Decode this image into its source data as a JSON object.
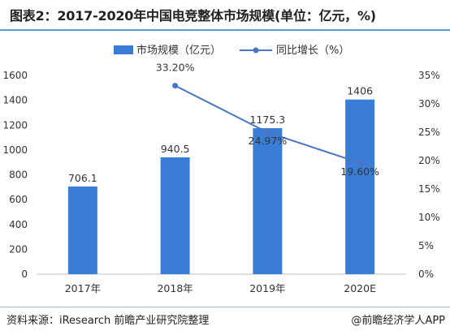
{
  "title": "图表2：2017-2020年中国电竞整体市场规模(单位：亿元，%)",
  "footer": {
    "source": "资料来源：iResearch 前瞻产业研究院整理",
    "credit": "@前瞻经济学人APP"
  },
  "colors": {
    "bar": "#3a7dd6",
    "line": "#4a74c4",
    "point": "#4a74c4"
  },
  "chart_data": {
    "type": "bar",
    "categories": [
      "2017年",
      "2018年",
      "2019年",
      "2020E"
    ],
    "series": [
      {
        "name": "市场规模（亿元）",
        "type": "bar",
        "axis": "left",
        "values": [
          706.1,
          940.5,
          1175.3,
          1406
        ],
        "labels": [
          "706.1",
          "940.5",
          "1175.3",
          "1406"
        ]
      },
      {
        "name": "同比增长（%）",
        "type": "line",
        "axis": "right",
        "values": [
          null,
          33.2,
          24.97,
          19.6
        ],
        "labels": [
          "",
          "33.20%",
          "24.97%",
          "19.60%"
        ]
      }
    ],
    "y_left": {
      "min": 0,
      "max": 1600,
      "ticks": [
        "0",
        "200",
        "400",
        "600",
        "800",
        "1000",
        "1200",
        "1400",
        "1600"
      ]
    },
    "y_right": {
      "min": 0,
      "max": 35,
      "ticks": [
        "0%",
        "5%",
        "10%",
        "15%",
        "20%",
        "25%",
        "30%",
        "35%"
      ]
    },
    "legend": "top-center",
    "grid": false
  }
}
